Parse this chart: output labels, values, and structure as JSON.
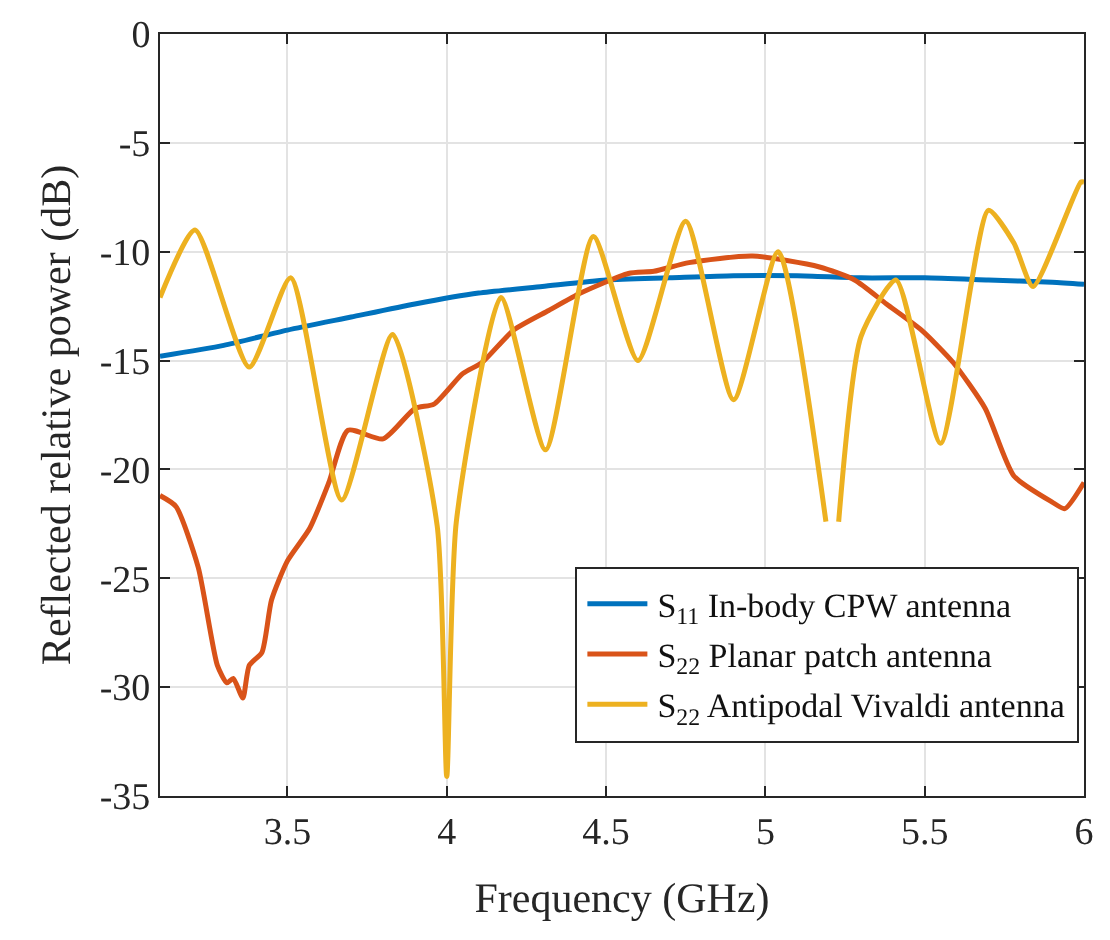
{
  "chart_data": {
    "type": "line",
    "xlabel": "Frequency (GHz)",
    "ylabel": "Reflected relative power (dB)",
    "xlim": [
      3.1,
      6
    ],
    "xticks": [
      3.5,
      4,
      4.5,
      5,
      5.5,
      6
    ],
    "ylim": [
      -35,
      0
    ],
    "yticks": [
      -35,
      -30,
      -25,
      -20,
      -15,
      -10,
      -5,
      0
    ],
    "grid": true,
    "legend": "bottom right",
    "marker": "none",
    "line_style": "solid",
    "series": [
      {
        "name": "S$_{11}$ In-body CPW antenna",
        "color": "#0072bd",
        "x": [
          3.1,
          3.3,
          3.5,
          3.7,
          3.9,
          4.1,
          4.3,
          4.5,
          4.7,
          4.9,
          5.1,
          5.3,
          5.5,
          5.7,
          5.9,
          6.0
        ],
        "values": [
          -14.8,
          -14.3,
          -13.6,
          -13.0,
          -12.4,
          -11.9,
          -11.6,
          -11.3,
          -11.2,
          -11.1,
          -11.1,
          -11.2,
          -11.2,
          -11.3,
          -11.4,
          -11.5
        ]
      },
      {
        "name": "S$_{22}$ Planar patch antenna",
        "color": "#d95319",
        "x": [
          3.1,
          3.15,
          3.22,
          3.28,
          3.31,
          3.33,
          3.36,
          3.38,
          3.42,
          3.45,
          3.5,
          3.57,
          3.63,
          3.69,
          3.8,
          3.9,
          3.96,
          4.05,
          4.11,
          4.21,
          4.32,
          4.42,
          4.57,
          4.65,
          4.76,
          4.96,
          5.17,
          5.28,
          5.38,
          5.49,
          5.59,
          5.69,
          5.78,
          5.9,
          5.94,
          6.0
        ],
        "values": [
          -21.2,
          -21.7,
          -24.5,
          -29.0,
          -29.8,
          -29.6,
          -30.5,
          -29.0,
          -28.4,
          -26.0,
          -24.2,
          -22.7,
          -20.6,
          -18.2,
          -18.6,
          -17.2,
          -17.0,
          -15.6,
          -15.1,
          -13.6,
          -12.7,
          -11.9,
          -11.0,
          -10.9,
          -10.5,
          -10.2,
          -10.7,
          -11.3,
          -12.4,
          -13.6,
          -15.1,
          -17.2,
          -20.3,
          -21.5,
          -21.8,
          -20.6
        ]
      },
      {
        "name": "S$_{22}$ Antipodal Vivaldi antenna",
        "color": "#edb120",
        "x": [
          3.1,
          3.21,
          3.38,
          3.51,
          3.67,
          3.83,
          3.97,
          4.0,
          4.03,
          4.17,
          4.31,
          4.46,
          4.6,
          4.75,
          4.9,
          5.04,
          5.19,
          5.21,
          5.23,
          5.3,
          5.41,
          5.55,
          5.7,
          5.78,
          5.84,
          5.99,
          6.0
        ],
        "values": [
          -12.1,
          -9.0,
          -15.3,
          -11.2,
          -21.4,
          -13.8,
          -22.6,
          -34.1,
          -22.4,
          -12.1,
          -19.1,
          -9.3,
          -15.0,
          -8.6,
          -16.8,
          -10.0,
          -22.4,
          null,
          -22.4,
          -13.9,
          -11.3,
          -18.8,
          -8.1,
          -9.6,
          -11.6,
          -6.8,
          -6.8
        ]
      }
    ]
  }
}
